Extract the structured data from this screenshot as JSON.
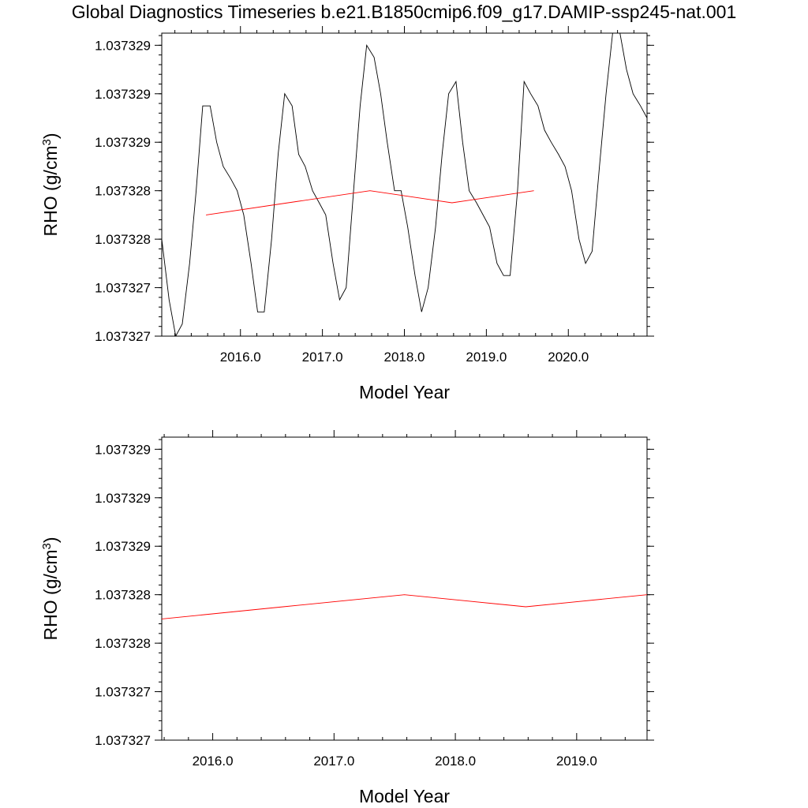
{
  "page": {
    "title": "Global Diagnostics Timeseries b.e21.B1850cmip6.f09_g17.DAMIP-ssp245-nat.001"
  },
  "colors": {
    "monthly": "#000000",
    "annual": "#ff0000"
  },
  "chart_data": [
    {
      "type": "line",
      "xlabel": "Model Year",
      "ylabel": "RHO (g/cm",
      "ylabel_sup": "3",
      "ylabel_close": ")",
      "xlim": [
        2015.04,
        2020.96
      ],
      "ylim": [
        1.0373268,
        1.0373293
      ],
      "xticks": [
        2016.0,
        2017.0,
        2018.0,
        2019.0,
        2020.0
      ],
      "xtick_labels": [
        "2016.0",
        "2017.0",
        "2018.0",
        "2019.0",
        "2020.0"
      ],
      "yticks": [
        1.0373268,
        1.0373272,
        1.0373276,
        1.037328,
        1.0373284,
        1.0373288,
        1.0373292
      ],
      "ytick_labels": [
        "1.037327",
        "1.037327",
        "1.037328",
        "1.037328",
        "1.037329",
        "1.037329",
        "1.037329"
      ],
      "series": [
        {
          "x": [
            2015.04,
            2015.13,
            2015.21,
            2015.29,
            2015.38,
            2015.46,
            2015.54,
            2015.63,
            2015.71,
            2015.79,
            2015.88,
            2015.96,
            2016.04,
            2016.13,
            2016.21,
            2016.29,
            2016.38,
            2016.46,
            2016.54,
            2016.63,
            2016.71,
            2016.79,
            2016.88,
            2016.96,
            2017.04,
            2017.13,
            2017.21,
            2017.29,
            2017.38,
            2017.46,
            2017.54,
            2017.63,
            2017.71,
            2017.79,
            2017.88,
            2017.96,
            2018.04,
            2018.13,
            2018.21,
            2018.29,
            2018.38,
            2018.46,
            2018.54,
            2018.63,
            2018.71,
            2018.79,
            2018.88,
            2018.96,
            2019.04,
            2019.13,
            2019.21,
            2019.29,
            2019.38,
            2019.46,
            2019.54,
            2019.63,
            2019.71,
            2019.79,
            2019.88,
            2019.96,
            2020.04,
            2020.13,
            2020.21,
            2020.29,
            2020.38,
            2020.46,
            2020.54,
            2020.63,
            2020.71,
            2020.79,
            2020.88,
            2020.96
          ],
          "values": [
            1.0373276,
            1.0373271,
            1.0373268,
            1.0373269,
            1.0373274,
            1.037328,
            1.0373287,
            1.0373287,
            1.0373284,
            1.0373282,
            1.0373281,
            1.037328,
            1.0373278,
            1.0373274,
            1.037327,
            1.037327,
            1.0373276,
            1.0373283,
            1.0373288,
            1.0373287,
            1.0373283,
            1.0373282,
            1.037328,
            1.0373279,
            1.0373278,
            1.0373274,
            1.0373271,
            1.0373272,
            1.037328,
            1.0373287,
            1.0373292,
            1.0373291,
            1.0373288,
            1.0373284,
            1.037328,
            1.037328,
            1.0373277,
            1.0373273,
            1.037327,
            1.0373272,
            1.0373277,
            1.0373283,
            1.0373288,
            1.0373289,
            1.0373284,
            1.037328,
            1.0373279,
            1.0373278,
            1.0373277,
            1.0373274,
            1.0373273,
            1.0373273,
            1.037328,
            1.0373289,
            1.0373288,
            1.0373287,
            1.0373285,
            1.0373284,
            1.0373283,
            1.0373282,
            1.037328,
            1.0373276,
            1.0373274,
            1.0373275,
            1.0373282,
            1.0373288,
            1.0373293,
            1.0373293,
            1.037329,
            1.0373288,
            1.0373287,
            1.0373286
          ]
        },
        {
          "x": [
            2015.58,
            2016.58,
            2017.58,
            2018.58,
            2019.58
          ],
          "values": [
            1.0373278,
            1.0373279,
            1.037328,
            1.0373279,
            1.037328
          ]
        }
      ]
    },
    {
      "type": "line",
      "xlabel": "Model Year",
      "ylabel": "RHO (g/cm",
      "ylabel_sup": "3",
      "ylabel_close": ")",
      "xlim": [
        2015.58,
        2019.58
      ],
      "ylim": [
        1.0373268,
        1.0373293
      ],
      "xticks": [
        2016.0,
        2017.0,
        2018.0,
        2019.0
      ],
      "xtick_labels": [
        "2016.0",
        "2017.0",
        "2018.0",
        "2019.0"
      ],
      "yticks": [
        1.0373268,
        1.0373272,
        1.0373276,
        1.037328,
        1.0373284,
        1.0373288,
        1.0373292
      ],
      "ytick_labels": [
        "1.037327",
        "1.037327",
        "1.037328",
        "1.037328",
        "1.037329",
        "1.037329",
        "1.037329"
      ],
      "series": [
        {
          "x": [
            2015.58,
            2016.58,
            2017.58,
            2018.58,
            2019.58
          ],
          "values": [
            1.0373278,
            1.0373279,
            1.037328,
            1.0373279,
            1.037328
          ]
        }
      ]
    }
  ]
}
